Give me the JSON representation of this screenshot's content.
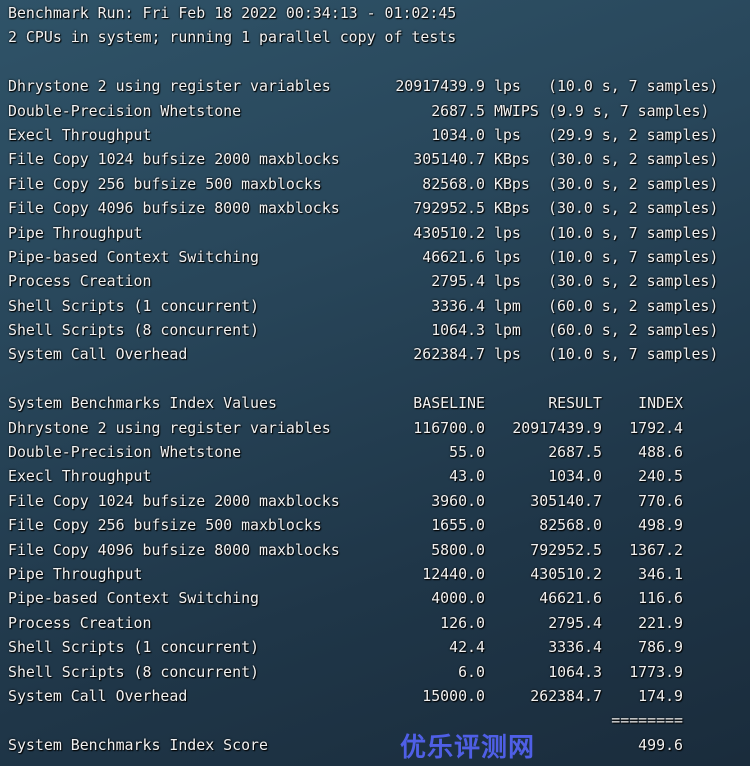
{
  "header": {
    "run_line": "Benchmark Run: Fri Feb 18 2022 00:34:13 - 01:02:45",
    "cpu_line": "2 CPUs in system; running 1 parallel copy of tests"
  },
  "tests": [
    {
      "name": "Dhrystone 2 using register variables",
      "value": "20917439.9",
      "unit": "lps",
      "timing": "(10.0 s, 7 samples)"
    },
    {
      "name": "Double-Precision Whetstone",
      "value": "2687.5",
      "unit": "MWIPS",
      "timing": "(9.9 s, 7 samples)"
    },
    {
      "name": "Execl Throughput",
      "value": "1034.0",
      "unit": "lps",
      "timing": "(29.9 s, 2 samples)"
    },
    {
      "name": "File Copy 1024 bufsize 2000 maxblocks",
      "value": "305140.7",
      "unit": "KBps",
      "timing": "(30.0 s, 2 samples)"
    },
    {
      "name": "File Copy 256 bufsize 500 maxblocks",
      "value": "82568.0",
      "unit": "KBps",
      "timing": "(30.0 s, 2 samples)"
    },
    {
      "name": "File Copy 4096 bufsize 8000 maxblocks",
      "value": "792952.5",
      "unit": "KBps",
      "timing": "(30.0 s, 2 samples)"
    },
    {
      "name": "Pipe Throughput",
      "value": "430510.2",
      "unit": "lps",
      "timing": "(10.0 s, 7 samples)"
    },
    {
      "name": "Pipe-based Context Switching",
      "value": "46621.6",
      "unit": "lps",
      "timing": "(10.0 s, 7 samples)"
    },
    {
      "name": "Process Creation",
      "value": "2795.4",
      "unit": "lps",
      "timing": "(30.0 s, 2 samples)"
    },
    {
      "name": "Shell Scripts (1 concurrent)",
      "value": "3336.4",
      "unit": "lpm",
      "timing": "(60.0 s, 2 samples)"
    },
    {
      "name": "Shell Scripts (8 concurrent)",
      "value": "1064.3",
      "unit": "lpm",
      "timing": "(60.0 s, 2 samples)"
    },
    {
      "name": "System Call Overhead",
      "value": "262384.7",
      "unit": "lps",
      "timing": "(10.0 s, 7 samples)"
    }
  ],
  "index": {
    "title": "System Benchmarks Index Values",
    "headers": {
      "baseline": "BASELINE",
      "result": "RESULT",
      "index": "INDEX"
    },
    "rows": [
      {
        "name": "Dhrystone 2 using register variables",
        "baseline": "116700.0",
        "result": "20917439.9",
        "index": "1792.4"
      },
      {
        "name": "Double-Precision Whetstone",
        "baseline": "55.0",
        "result": "2687.5",
        "index": "488.6"
      },
      {
        "name": "Execl Throughput",
        "baseline": "43.0",
        "result": "1034.0",
        "index": "240.5"
      },
      {
        "name": "File Copy 1024 bufsize 2000 maxblocks",
        "baseline": "3960.0",
        "result": "305140.7",
        "index": "770.6"
      },
      {
        "name": "File Copy 256 bufsize 500 maxblocks",
        "baseline": "1655.0",
        "result": "82568.0",
        "index": "498.9"
      },
      {
        "name": "File Copy 4096 bufsize 8000 maxblocks",
        "baseline": "5800.0",
        "result": "792952.5",
        "index": "1367.2"
      },
      {
        "name": "Pipe Throughput",
        "baseline": "12440.0",
        "result": "430510.2",
        "index": "346.1"
      },
      {
        "name": "Pipe-based Context Switching",
        "baseline": "4000.0",
        "result": "46621.6",
        "index": "116.6"
      },
      {
        "name": "Process Creation",
        "baseline": "126.0",
        "result": "2795.4",
        "index": "221.9"
      },
      {
        "name": "Shell Scripts (1 concurrent)",
        "baseline": "42.4",
        "result": "3336.4",
        "index": "786.9"
      },
      {
        "name": "Shell Scripts (8 concurrent)",
        "baseline": "6.0",
        "result": "1064.3",
        "index": "1773.9"
      },
      {
        "name": "System Call Overhead",
        "baseline": "15000.0",
        "result": "262384.7",
        "index": "174.9"
      }
    ],
    "separator": "========",
    "score_label": "System Benchmarks Index Score",
    "score": "499.6"
  },
  "watermark_logo": "优乐评测网",
  "colors": {
    "text": "#f2f2f2",
    "logo": "#4f5fe6"
  }
}
